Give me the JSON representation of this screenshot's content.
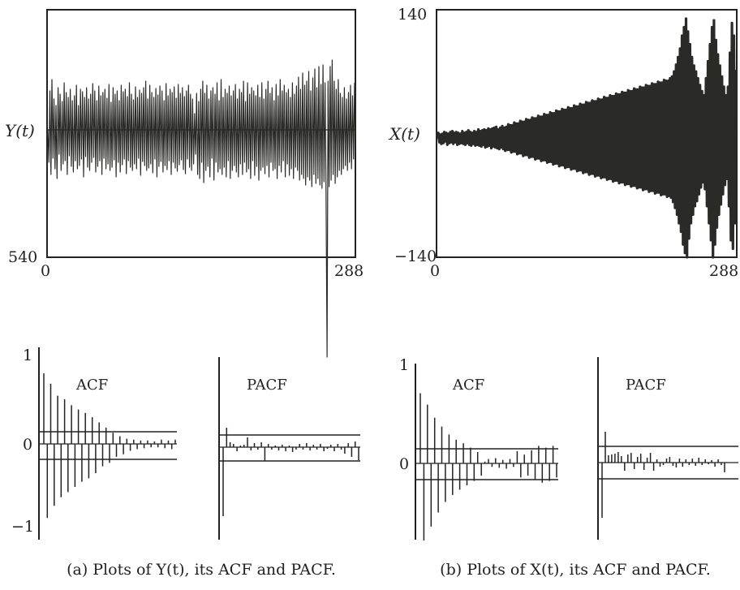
{
  "chart_data": [
    {
      "type": "line",
      "panel": "a-series",
      "ylabel": "Y(t)",
      "xlim": [
        0,
        288
      ],
      "ylim": [
        540,
        null
      ],
      "x_ticks": [
        "0",
        "288"
      ],
      "y_tick": "540",
      "series": [
        {
          "values": [
            0,
            -40,
            48,
            -55,
            62,
            -35,
            38,
            -48,
            30,
            -60,
            52,
            -30,
            44,
            -50,
            35,
            -42,
            58,
            -38,
            46,
            -55,
            40,
            -32,
            50,
            -45,
            36,
            -52,
            42,
            -38,
            55,
            -48,
            30,
            -44,
            50,
            -36,
            47,
            -58,
            40,
            -33,
            52,
            -46,
            38,
            -50,
            44,
            -40,
            57,
            -34,
            48,
            -52,
            36,
            -45,
            54,
            -38,
            42,
            -55,
            46,
            -35,
            50,
            -48,
            39,
            -42,
            56,
            -50,
            34,
            -46,
            52,
            -37,
            44,
            -58,
            48,
            -40,
            36,
            -52,
            55,
            -43,
            47,
            -36,
            50,
            -54,
            41,
            -38,
            58,
            -46,
            44,
            -50,
            37,
            -42,
            53,
            -48,
            40,
            -35,
            49,
            -56,
            45,
            -39,
            52,
            -44,
            60,
            -50,
            38,
            -47,
            55,
            -42,
            46,
            -53,
            40,
            -36,
            51,
            -58,
            43,
            -45,
            54,
            -39,
            48,
            -52,
            36,
            -44,
            57,
            -49,
            42,
            -38,
            50,
            -55,
            46,
            -40,
            53,
            -47,
            39,
            -51,
            56,
            -43,
            45,
            -37,
            52,
            -49,
            41,
            -54,
            48,
            -36,
            55,
            -46,
            44,
            -50,
            38,
            -42,
            20,
            -30,
            45,
            -55,
            35,
            -60,
            50,
            -40,
            60,
            -65,
            45,
            -50,
            55,
            -45,
            38,
            -58,
            48,
            -35,
            52,
            -62,
            44,
            -40,
            58,
            -52,
            36,
            -48,
            62,
            -55,
            40,
            -46,
            50,
            -58,
            45,
            -38,
            54,
            -60,
            42,
            -50,
            48,
            -44,
            56,
            -52,
            38,
            -58,
            50,
            -42,
            46,
            -55,
            60,
            -40,
            35,
            -52,
            58,
            -48,
            44,
            -60,
            52,
            -38,
            48,
            -56,
            42,
            -45,
            55,
            -62,
            40,
            -50,
            58,
            -46,
            38,
            -54,
            50,
            -44,
            60,
            -58,
            45,
            -40,
            52,
            -50,
            36,
            -48,
            56,
            -60,
            42,
            -44,
            62,
            -52,
            48,
            -38,
            55,
            -58,
            46,
            -42,
            50,
            -56,
            40,
            -48,
            58,
            -60,
            44,
            -46,
            54,
            -50,
            65,
            -62,
            50,
            -55,
            70,
            -60,
            55,
            -68,
            60,
            -58,
            72,
            -62,
            48,
            -70,
            64,
            -55,
            75,
            -66,
            52,
            -60,
            78,
            -68,
            56,
            -72,
            80,
            -64,
            58,
            -75,
            -280,
            60,
            -70,
            78,
            -62,
            86,
            -55,
            60,
            -66,
            50,
            -58,
            62,
            -50,
            45,
            -55,
            40,
            -48,
            52,
            -44,
            38,
            -50,
            46,
            -40,
            55,
            -48,
            42,
            -36,
            58
          ]
        }
      ]
    },
    {
      "type": "line",
      "panel": "b-series",
      "ylabel": "X(t)",
      "xlim": [
        0,
        288
      ],
      "ylim": [
        -140,
        140
      ],
      "x_ticks": [
        "0",
        "288"
      ],
      "y_ticks": [
        "140",
        "−140"
      ],
      "series": [
        {
          "values": [
            0,
            6,
            -5,
            4,
            -7,
            5,
            -6,
            7,
            -4,
            6,
            -8,
            5,
            -6,
            7,
            -5,
            8,
            -7,
            6,
            -5,
            7,
            -8,
            6,
            -7,
            5,
            -6,
            8,
            -7,
            6,
            -8,
            7,
            -6,
            9,
            -8,
            7,
            -9,
            6,
            -7,
            8,
            -9,
            7,
            -8,
            10,
            -9,
            8,
            -10,
            9,
            -8,
            10,
            -11,
            9,
            -10,
            11,
            -9,
            10,
            -12,
            11,
            -10,
            12,
            -11,
            13,
            -12,
            10,
            -13,
            12,
            -11,
            14,
            -13,
            12,
            -15,
            13,
            -14,
            16,
            -14,
            15,
            -17,
            15,
            -16,
            18,
            -16,
            17,
            -19,
            17,
            -18,
            20,
            -18,
            19,
            -21,
            19,
            -20,
            22,
            -20,
            21,
            -23,
            21,
            -22,
            24,
            -22,
            23,
            -25,
            23,
            -24,
            26,
            -24,
            25,
            -27,
            25,
            -26,
            28,
            -26,
            27,
            -29,
            27,
            -28,
            30,
            -28,
            29,
            -31,
            29,
            -30,
            32,
            -30,
            31,
            -33,
            31,
            -32,
            34,
            -32,
            33,
            -35,
            33,
            -34,
            36,
            -34,
            35,
            -37,
            35,
            -36,
            38,
            -36,
            37,
            -39,
            37,
            -38,
            40,
            -38,
            39,
            -41,
            39,
            -40,
            42,
            -40,
            41,
            -43,
            41,
            -42,
            44,
            -42,
            43,
            -45,
            43,
            -44,
            46,
            -44,
            45,
            -47,
            45,
            -46,
            48,
            -46,
            47,
            -49,
            47,
            -48,
            50,
            -48,
            49,
            -51,
            49,
            -50,
            52,
            -50,
            51,
            -53,
            51,
            -52,
            54,
            -52,
            53,
            -55,
            53,
            -54,
            56,
            -54,
            55,
            -57,
            55,
            -56,
            58,
            -56,
            57,
            -59,
            57,
            -58,
            60,
            -58,
            59,
            -61,
            59,
            -60,
            62,
            -60,
            61,
            -63,
            61,
            -62,
            64,
            -62,
            63,
            -65,
            63,
            -64,
            66,
            -64,
            65,
            -67,
            65,
            -66,
            68,
            -66,
            67,
            -69,
            67,
            -68,
            70,
            -70,
            72,
            -75,
            78,
            -82,
            86,
            -90,
            95,
            -100,
            105,
            -110,
            120,
            -125,
            130,
            -135,
            140,
            -140,
            125,
            -118,
            110,
            -100,
            95,
            -90,
            85,
            -80,
            78,
            -74,
            70,
            -66,
            62,
            -58,
            55,
            -52,
            50,
            -60,
            70,
            -80,
            90,
            -100,
            110,
            -120,
            130,
            -140,
            138,
            -125,
            115,
            -105,
            98,
            -90,
            85,
            -78,
            72,
            -66,
            60,
            -55,
            50,
            -48,
            60,
            -80,
            100,
            -120,
            135,
            -130,
            120,
            -100,
            80
          ]
        }
      ]
    },
    {
      "type": "bar",
      "panel": "a-acf",
      "label": "ACF",
      "ylim": [
        -1,
        1
      ],
      "y_ticks": [
        "1",
        "0",
        "−1"
      ],
      "confidence_band": [
        0.15,
        -0.16
      ],
      "values": [
        0.82,
        -0.86,
        0.7,
        -0.72,
        0.56,
        -0.62,
        0.52,
        -0.56,
        0.45,
        -0.5,
        0.4,
        -0.44,
        0.36,
        -0.4,
        0.31,
        -0.34,
        0.25,
        -0.26,
        0.19,
        -0.22,
        0.13,
        -0.15,
        0.09,
        -0.12,
        0.06,
        -0.08,
        0.05,
        -0.06,
        0.04,
        -0.05,
        0.04,
        -0.04,
        0.03,
        -0.04,
        0.05,
        -0.05,
        0.04,
        -0.06,
        0.05
      ]
    },
    {
      "type": "bar",
      "panel": "a-pacf",
      "label": "PACF",
      "ylim": [
        -1,
        1
      ],
      "confidence_band": [
        0.15,
        -0.16
      ],
      "values": [
        -0.85,
        0.24,
        0.06,
        0.04,
        -0.05,
        0.02,
        0.03,
        0.12,
        -0.04,
        0.05,
        -0.03,
        0.06,
        -0.17,
        0.04,
        -0.03,
        0.02,
        -0.04,
        0.03,
        -0.05,
        0.02,
        -0.06,
        -0.03,
        0.04,
        -0.03,
        0.05,
        -0.04,
        0.03,
        -0.03,
        0.04,
        -0.05,
        -0.02,
        0.03,
        -0.05,
        0.04,
        -0.03,
        -0.08,
        0.05,
        -0.12,
        0.07,
        -0.16
      ]
    },
    {
      "type": "bar",
      "panel": "b-acf",
      "label": "ACF",
      "ylim": [
        -1,
        1
      ],
      "y_ticks": [
        "1",
        "0"
      ],
      "confidence_band": [
        0.16,
        -0.16
      ],
      "values": [
        0.8,
        -0.88,
        0.67,
        -0.72,
        0.52,
        -0.56,
        0.42,
        -0.44,
        0.33,
        -0.36,
        0.27,
        -0.3,
        0.23,
        -0.25,
        0.18,
        -0.2,
        0.13,
        -0.14,
        0.02,
        0.05,
        -0.04,
        0.06,
        -0.05,
        0.04,
        -0.06,
        0.05,
        -0.04,
        0.14,
        -0.16,
        0.1,
        -0.14,
        0.15,
        -0.18,
        0.2,
        -0.22,
        0.18,
        -0.2,
        0.2,
        -0.16
      ]
    },
    {
      "type": "bar",
      "panel": "b-pacf",
      "label": "PACF",
      "ylim": [
        -1,
        1
      ],
      "confidence_band": [
        0.16,
        -0.16
      ],
      "values": [
        -0.68,
        0.38,
        0.09,
        0.1,
        0.11,
        0.13,
        0.08,
        -0.1,
        0.1,
        0.12,
        -0.08,
        0.07,
        0.11,
        -0.09,
        0.06,
        0.12,
        -0.1,
        0.04,
        -0.05,
        -0.03,
        0.05,
        0.07,
        -0.04,
        -0.06,
        0.05,
        -0.05,
        0.04,
        -0.03,
        0.05,
        -0.04,
        0.06,
        -0.03,
        0.04,
        -0.02,
        0.03,
        -0.05,
        0.04,
        -0.03,
        -0.12
      ]
    }
  ],
  "captions": {
    "a": "(a) Plots of Y(t), its ACF and PACF.",
    "b": "(b) Plots of X(t), its ACF and PACF."
  }
}
